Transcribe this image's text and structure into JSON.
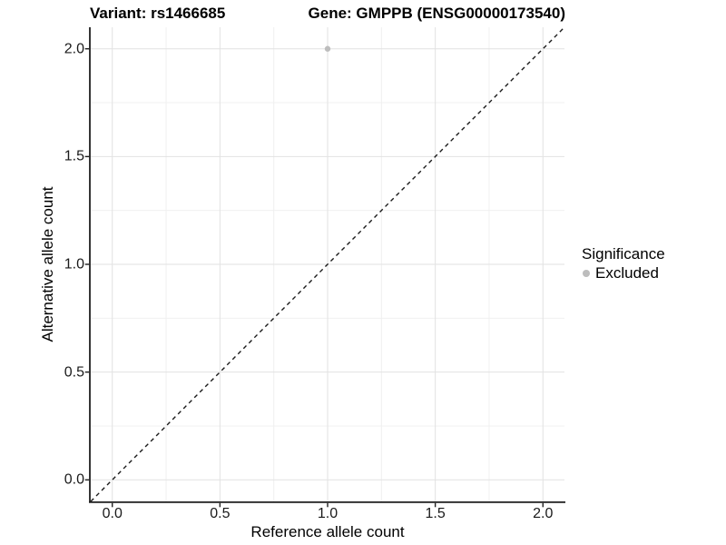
{
  "chart_data": {
    "type": "scatter",
    "title_left": "Variant: rs1466685",
    "title_right": "Gene: GMPPB (ENSG00000173540)",
    "xlabel": "Reference allele count",
    "ylabel": "Alternative allele count",
    "xlim": [
      -0.1,
      2.1
    ],
    "ylim": [
      -0.1,
      2.1
    ],
    "x_ticks": [
      0.0,
      0.5,
      1.0,
      1.5,
      2.0
    ],
    "x_tick_labels": [
      "0.0",
      "0.5",
      "1.0",
      "1.5",
      "2.0"
    ],
    "y_ticks": [
      0.0,
      0.5,
      1.0,
      1.5,
      2.0
    ],
    "y_tick_labels": [
      "0.0",
      "0.5",
      "1.0",
      "1.5",
      "2.0"
    ],
    "x_minor_ticks": [
      0.25,
      0.75,
      1.25,
      1.75
    ],
    "y_minor_ticks": [
      0.25,
      0.75,
      1.25,
      1.75
    ],
    "grid": true,
    "series": [
      {
        "name": "Excluded",
        "color": "#bdbdbd",
        "points": [
          {
            "x": 1.0,
            "y": 2.0
          }
        ]
      }
    ],
    "reference_line": {
      "slope": 1,
      "intercept": 0,
      "style": "dashed",
      "color": "#1a1a1a"
    },
    "legend": {
      "title": "Significance",
      "position": "right",
      "items": [
        {
          "label": "Excluded",
          "color": "#bdbdbd"
        }
      ]
    },
    "colors": {
      "background": "#ffffff",
      "grid_major": "#e2e2e2",
      "grid_minor": "#f0f0f0",
      "axis_line": "#1f1f1f",
      "tick_mark": "#1f1f1f",
      "tick_label": "#1a1a1a",
      "title": "#000000"
    }
  }
}
